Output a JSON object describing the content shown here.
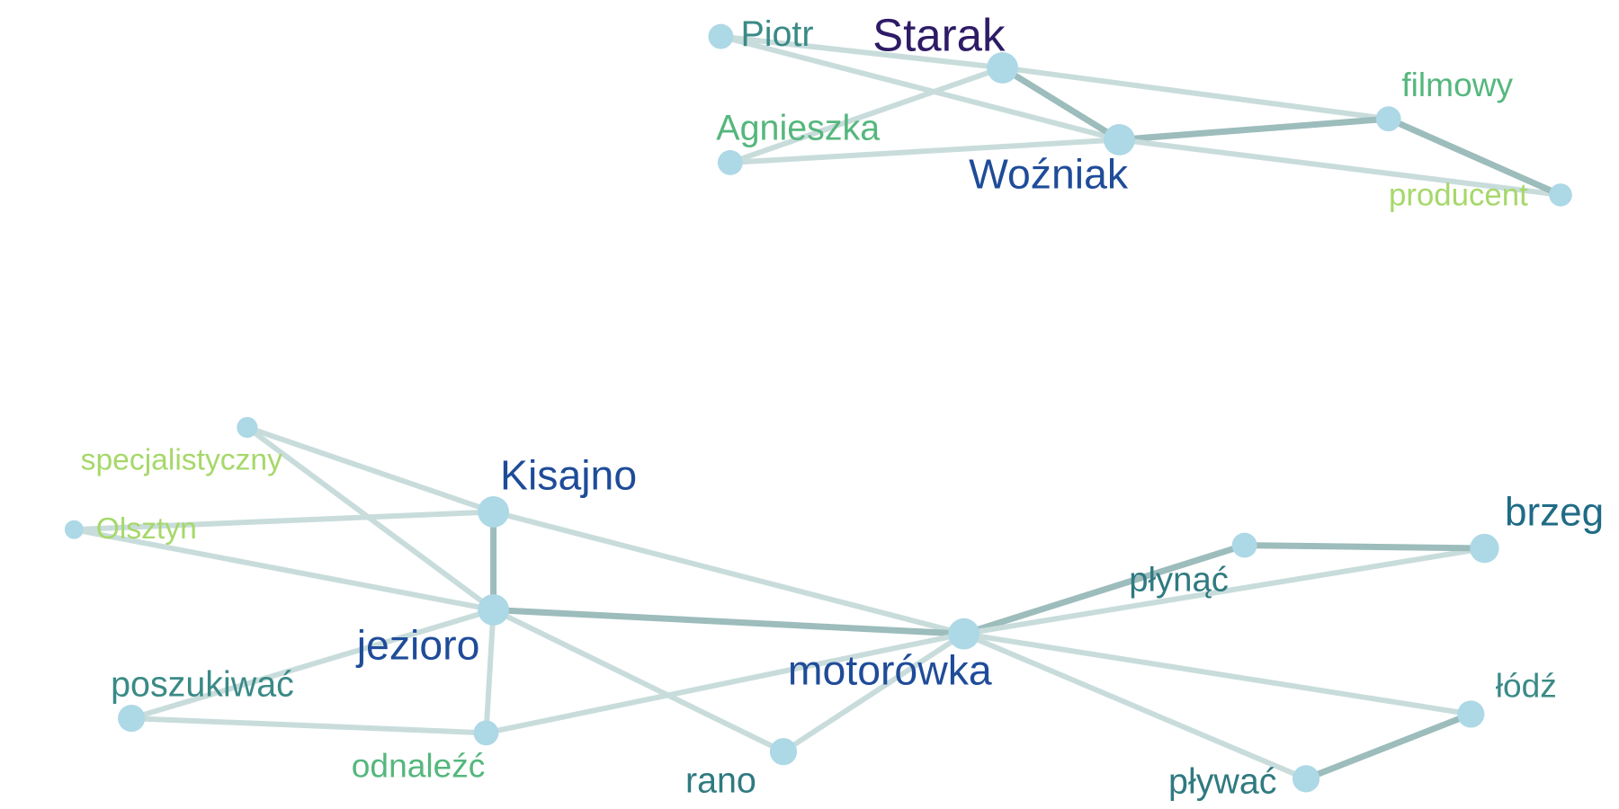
{
  "graph": {
    "node_color": "#add8e6",
    "edge_color_light": "#c9dcdc",
    "edge_color_strong": "#9dbcbc",
    "nodes": [
      {
        "id": "Piotr",
        "label": "Piotr",
        "label_color": "#3a8a86"
      },
      {
        "id": "Starak",
        "label": "Starak",
        "label_color": "#2e1b66"
      },
      {
        "id": "Agnieszka",
        "label": "Agnieszka",
        "label_color": "#55b77d"
      },
      {
        "id": "Wozniak",
        "label": "Woźniak",
        "label_color": "#1f4c99"
      },
      {
        "id": "filmowy",
        "label": "filmowy",
        "label_color": "#55b77d"
      },
      {
        "id": "producent",
        "label": "producent",
        "label_color": "#a6d86a"
      },
      {
        "id": "n_spec",
        "label": "",
        "label_color": "#a6d86a"
      },
      {
        "id": "specjalistyczny",
        "label": "specjalistyczny",
        "label_color": "#a6d86a"
      },
      {
        "id": "Olsztyn",
        "label": "Olsztyn",
        "label_color": "#a6d86a"
      },
      {
        "id": "Kisajno",
        "label": "Kisajno",
        "label_color": "#1f4c99"
      },
      {
        "id": "jezioro",
        "label": "jezioro",
        "label_color": "#1f4c99"
      },
      {
        "id": "poszukiwac",
        "label": "poszukiwać",
        "label_color": "#3a8a86"
      },
      {
        "id": "odnalezc",
        "label": "odnaleźć",
        "label_color": "#55b77d"
      },
      {
        "id": "rano",
        "label": "rano",
        "label_color": "#2f7a80"
      },
      {
        "id": "motorowka",
        "label": "motorówka",
        "label_color": "#1f4c99"
      },
      {
        "id": "plynac",
        "label": "płynąć",
        "label_color": "#2f7a80"
      },
      {
        "id": "brzeg",
        "label": "brzeg",
        "label_color": "#1f6b86"
      },
      {
        "id": "lodz",
        "label": "łódź",
        "label_color": "#3a8a86"
      },
      {
        "id": "plywac",
        "label": "pływać",
        "label_color": "#2f7a80"
      }
    ],
    "edges": [
      {
        "source": "Piotr",
        "target": "Starak",
        "strong": false
      },
      {
        "source": "Piotr",
        "target": "Wozniak",
        "strong": false
      },
      {
        "source": "Starak",
        "target": "Agnieszka",
        "strong": false
      },
      {
        "source": "Starak",
        "target": "Wozniak",
        "strong": true
      },
      {
        "source": "Starak",
        "target": "filmowy",
        "strong": false
      },
      {
        "source": "Agnieszka",
        "target": "Wozniak",
        "strong": false
      },
      {
        "source": "Wozniak",
        "target": "filmowy",
        "strong": true
      },
      {
        "source": "Wozniak",
        "target": "producent",
        "strong": false
      },
      {
        "source": "filmowy",
        "target": "producent",
        "strong": true
      },
      {
        "source": "n_spec",
        "target": "Kisajno",
        "strong": false
      },
      {
        "source": "n_spec",
        "target": "jezioro",
        "strong": false
      },
      {
        "source": "Olsztyn",
        "target": "Kisajno",
        "strong": false
      },
      {
        "source": "Olsztyn",
        "target": "jezioro",
        "strong": false
      },
      {
        "source": "Kisajno",
        "target": "jezioro",
        "strong": true
      },
      {
        "source": "Kisajno",
        "target": "motorowka",
        "strong": false
      },
      {
        "source": "jezioro",
        "target": "motorowka",
        "strong": true
      },
      {
        "source": "jezioro",
        "target": "poszukiwac",
        "strong": false
      },
      {
        "source": "jezioro",
        "target": "odnalezc",
        "strong": false
      },
      {
        "source": "jezioro",
        "target": "rano",
        "strong": false
      },
      {
        "source": "poszukiwac",
        "target": "odnalezc",
        "strong": false
      },
      {
        "source": "odnalezc",
        "target": "motorowka",
        "strong": false
      },
      {
        "source": "rano",
        "target": "motorowka",
        "strong": false
      },
      {
        "source": "motorowka",
        "target": "plynac",
        "strong": true
      },
      {
        "source": "motorowka",
        "target": "brzeg",
        "strong": false
      },
      {
        "source": "motorowka",
        "target": "lodz",
        "strong": false
      },
      {
        "source": "motorowka",
        "target": "plywac",
        "strong": false
      },
      {
        "source": "plynac",
        "target": "brzeg",
        "strong": true
      },
      {
        "source": "plywac",
        "target": "lodz",
        "strong": true
      }
    ]
  }
}
